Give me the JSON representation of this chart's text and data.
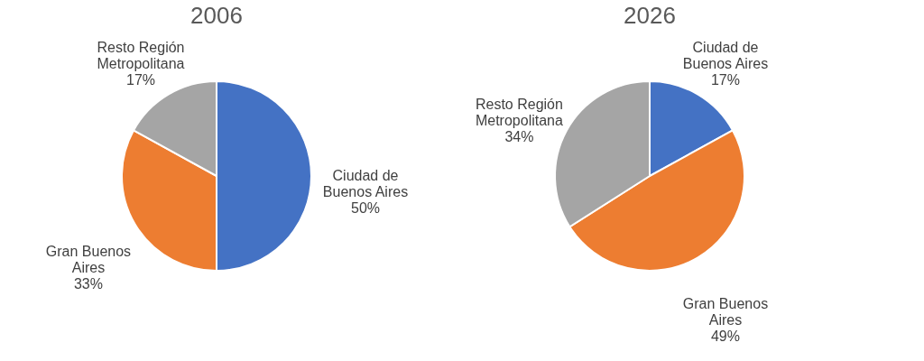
{
  "chart_data": [
    {
      "type": "pie",
      "title": "2006",
      "categories": [
        "Ciudad de Buenos Aires",
        "Gran Buenos Aires",
        "Resto Región Metropolitana"
      ],
      "values": [
        50,
        33,
        17
      ],
      "colors": [
        "#4472c4",
        "#ed7d31",
        "#a5a5a5"
      ],
      "value_labels": [
        "50%",
        "33%",
        "17%"
      ]
    },
    {
      "type": "pie",
      "title": "2026",
      "categories": [
        "Ciudad de Buenos Aires",
        "Gran Buenos Aires",
        "Resto Región Metropolitana"
      ],
      "values": [
        17,
        49,
        34
      ],
      "colors": [
        "#4472c4",
        "#ed7d31",
        "#a5a5a5"
      ],
      "value_labels": [
        "17%",
        "49%",
        "34%"
      ]
    }
  ]
}
